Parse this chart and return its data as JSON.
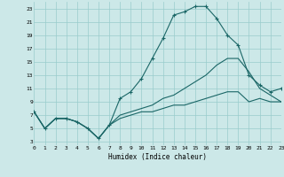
{
  "xlabel": "Humidex (Indice chaleur)",
  "bg_color": "#cce8e8",
  "grid_color": "#99cccc",
  "line_color": "#1a6666",
  "xlim": [
    0,
    23
  ],
  "ylim": [
    2.5,
    24.0
  ],
  "xticks": [
    0,
    1,
    2,
    3,
    4,
    5,
    6,
    7,
    8,
    9,
    10,
    11,
    12,
    13,
    14,
    15,
    16,
    17,
    18,
    19,
    20,
    21,
    22,
    23
  ],
  "yticks": [
    3,
    5,
    7,
    9,
    11,
    13,
    15,
    17,
    19,
    21,
    23
  ],
  "line1_x": [
    0,
    1,
    2,
    3,
    4,
    5,
    6,
    7,
    8,
    9,
    10,
    11,
    12,
    13,
    14,
    15,
    16,
    17,
    18,
    19,
    20,
    21,
    22,
    23
  ],
  "line1_y": [
    7.5,
    5.0,
    6.5,
    6.5,
    6.0,
    5.0,
    3.5,
    5.5,
    9.5,
    10.5,
    12.5,
    15.5,
    18.5,
    22.0,
    22.5,
    23.3,
    23.3,
    21.5,
    19.0,
    17.5,
    13.0,
    11.5,
    10.5,
    11.0
  ],
  "line2_x": [
    0,
    1,
    2,
    3,
    4,
    5,
    6,
    7,
    8,
    9,
    10,
    11,
    12,
    13,
    14,
    15,
    16,
    17,
    18,
    19,
    20,
    21,
    22,
    23
  ],
  "line2_y": [
    7.5,
    5.0,
    6.5,
    6.5,
    6.0,
    5.0,
    3.5,
    5.5,
    7.0,
    7.5,
    8.0,
    8.5,
    9.5,
    10.0,
    11.0,
    12.0,
    13.0,
    14.5,
    15.5,
    15.5,
    13.5,
    11.0,
    10.0,
    9.0
  ],
  "line3_x": [
    0,
    1,
    2,
    3,
    4,
    5,
    6,
    7,
    8,
    9,
    10,
    11,
    12,
    13,
    14,
    15,
    16,
    17,
    18,
    19,
    20,
    21,
    22,
    23
  ],
  "line3_y": [
    7.5,
    5.0,
    6.5,
    6.5,
    6.0,
    5.0,
    3.5,
    5.5,
    6.5,
    7.0,
    7.5,
    7.5,
    8.0,
    8.5,
    8.5,
    9.0,
    9.5,
    10.0,
    10.5,
    10.5,
    9.0,
    9.5,
    9.0,
    9.0
  ]
}
